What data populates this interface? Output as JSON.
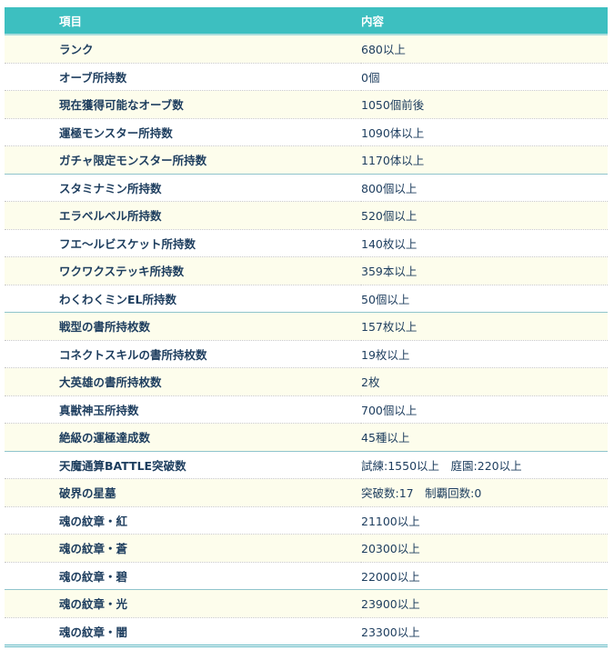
{
  "header": {
    "item": "項目",
    "content": "内容"
  },
  "rows": [
    {
      "item": "ランク",
      "content": "680以上"
    },
    {
      "item": "オーブ所持数",
      "content": "0個"
    },
    {
      "item": "現在獲得可能なオーブ数",
      "content": "1050個前後"
    },
    {
      "item": "運極モンスター所持数",
      "content": "1090体以上"
    },
    {
      "item": "ガチャ限定モンスター所持数",
      "content": "1170体以上"
    },
    {
      "item": "スタミナミン所持数",
      "content": "800個以上"
    },
    {
      "item": "エラベルベル所持数",
      "content": "520個以上"
    },
    {
      "item": "フエ～ルビスケット所持数",
      "content": "140枚以上"
    },
    {
      "item": "ワクワクステッキ所持数",
      "content": "359本以上"
    },
    {
      "item": "わくわくミンEL所持数",
      "content": "50個以上"
    },
    {
      "item": "戦型の書所持枚数",
      "content": "157枚以上"
    },
    {
      "item": "コネクトスキルの書所持枚数",
      "content": "19枚以上"
    },
    {
      "item": "大英雄の書所持枚数",
      "content": "2枚"
    },
    {
      "item": "真獣神玉所持数",
      "content": "700個以上"
    },
    {
      "item": "絶級の運極達成数",
      "content": "45種以上"
    },
    {
      "item": "天魔通算BATTLE突破数",
      "content": "試練:1550以上　庭園:220以上"
    },
    {
      "item": "破界の星墓",
      "content": "突破数:17　制覇回数:0"
    },
    {
      "item": "魂の紋章・紅",
      "content": "21100以上"
    },
    {
      "item": "魂の紋章・蒼",
      "content": "20300以上"
    },
    {
      "item": "魂の紋章・碧",
      "content": "22000以上"
    },
    {
      "item": "魂の紋章・光",
      "content": "23900以上"
    },
    {
      "item": "魂の紋章・闇",
      "content": "23300以上"
    }
  ],
  "colors": {
    "header": "#3dbfc0",
    "stripe": "#fdfdec",
    "text": "#1d3d5e"
  }
}
